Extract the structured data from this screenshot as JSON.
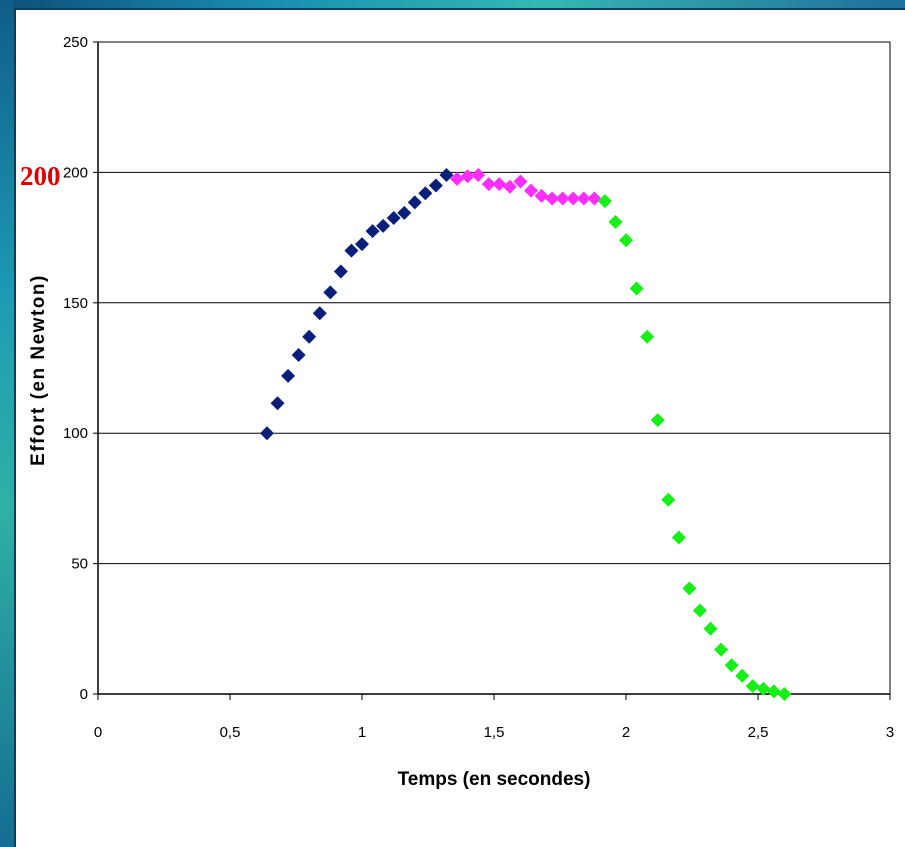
{
  "chart_data": {
    "type": "scatter",
    "title": "",
    "xlabel": "Temps (en secondes)",
    "ylabel": "Effort (en Newton)",
    "xlim": [
      0,
      3
    ],
    "ylim": [
      0,
      250
    ],
    "x_ticks": [
      "0",
      "0,5",
      "1",
      "1,5",
      "2",
      "2,5",
      "3"
    ],
    "y_ticks": [
      "0",
      "50",
      "100",
      "150",
      "200",
      "250"
    ],
    "grid": "horizontal",
    "legend": "none",
    "marker": "diamond",
    "annotations": [
      {
        "text": "200"
      }
    ],
    "series": [
      {
        "color": "#0a1f7a",
        "x": [
          0.64,
          0.68,
          0.72,
          0.76,
          0.8,
          0.84,
          0.88,
          0.92,
          0.96,
          1.0,
          1.04,
          1.08,
          1.12,
          1.16,
          1.2,
          1.24,
          1.28,
          1.32
        ],
        "y": [
          100,
          111.5,
          122,
          130,
          137,
          146,
          154,
          162,
          170,
          172.5,
          177.5,
          179.5,
          182.5,
          184.5,
          188.5,
          192,
          195,
          199
        ]
      },
      {
        "color": "#ff2eff",
        "x": [
          1.36,
          1.4,
          1.44,
          1.48,
          1.52,
          1.56,
          1.6,
          1.64,
          1.68,
          1.72,
          1.76,
          1.8,
          1.84,
          1.88
        ],
        "y": [
          197.5,
          198.5,
          199,
          195.5,
          195.5,
          194.5,
          196.5,
          193,
          191,
          190,
          190,
          190,
          190,
          190
        ]
      },
      {
        "color": "#16f016",
        "x": [
          1.92,
          1.96,
          2.0,
          2.04,
          2.08,
          2.12,
          2.16,
          2.2,
          2.24,
          2.28,
          2.32,
          2.36,
          2.4,
          2.44,
          2.48,
          2.52,
          2.56,
          2.6
        ],
        "y": [
          189,
          181,
          174,
          155.5,
          137,
          105,
          74.5,
          60,
          40.5,
          32,
          25,
          17,
          11,
          7,
          3,
          2,
          1,
          0
        ]
      }
    ]
  }
}
